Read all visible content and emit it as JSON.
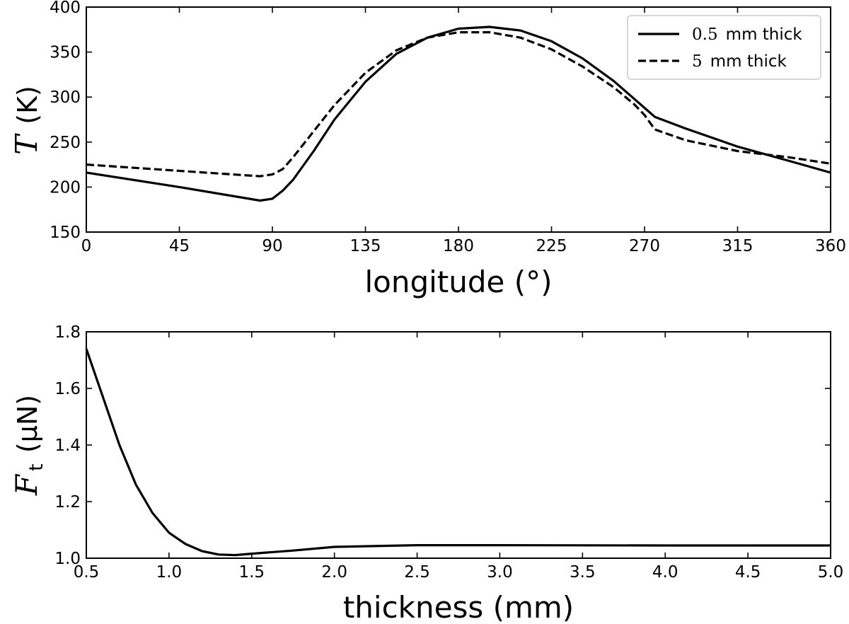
{
  "chart_data": [
    {
      "type": "line",
      "xlabel": "longitude (°)",
      "ylabel": "T (K)",
      "ylabel_symbol": "T",
      "ylabel_unit": "(K)",
      "xlim": [
        0,
        360
      ],
      "ylim": [
        150,
        400
      ],
      "xticks": [
        0,
        45,
        90,
        135,
        180,
        225,
        270,
        315,
        360
      ],
      "yticks": [
        150,
        200,
        250,
        300,
        350,
        400
      ],
      "legend": "top-right",
      "series": [
        {
          "name": "0.5 mm thick",
          "legend_value": "0.5",
          "legend_suffix": "mm thick",
          "style": "solid",
          "x": [
            0,
            45,
            84,
            90,
            95,
            100,
            110,
            120,
            135,
            150,
            165,
            180,
            195,
            210,
            225,
            240,
            255,
            265,
            270,
            275,
            290,
            315,
            340,
            360
          ],
          "y": [
            216,
            200,
            185,
            187,
            196,
            208,
            240,
            275,
            317,
            348,
            366,
            376,
            378,
            374,
            362,
            343,
            318,
            298,
            288,
            278,
            265,
            245,
            229,
            216
          ]
        },
        {
          "name": "5 mm thick",
          "legend_value": "5",
          "legend_suffix": "mm thick",
          "style": "dashed",
          "x": [
            0,
            45,
            84,
            90,
            95,
            100,
            110,
            120,
            135,
            150,
            165,
            180,
            195,
            210,
            225,
            240,
            255,
            265,
            270,
            275,
            290,
            315,
            340,
            360
          ],
          "y": [
            225,
            218,
            212,
            214,
            220,
            233,
            262,
            291,
            327,
            352,
            366,
            372,
            372,
            366,
            353,
            334,
            311,
            292,
            280,
            264,
            252,
            240,
            233,
            226
          ]
        }
      ]
    },
    {
      "type": "line",
      "xlabel": "thickness (mm)",
      "ylabel": "F_t (μN)",
      "ylabel_symbol": "F",
      "ylabel_subscript": "t",
      "ylabel_unit": "(μN)",
      "xlim": [
        0.5,
        5.0
      ],
      "ylim": [
        1.0,
        1.8
      ],
      "xticks": [
        0.5,
        1.0,
        1.5,
        2.0,
        2.5,
        3.0,
        3.5,
        4.0,
        4.5,
        5.0
      ],
      "xtick_labels": [
        "0.5",
        "1.0",
        "1.5",
        "2.0",
        "2.5",
        "3.0",
        "3.5",
        "4.0",
        "4.5",
        "5.0"
      ],
      "yticks": [
        1.0,
        1.2,
        1.4,
        1.6,
        1.8
      ],
      "ytick_labels": [
        "1.0",
        "1.2",
        "1.4",
        "1.6",
        "1.8"
      ],
      "series": [
        {
          "name": "F_t",
          "style": "solid",
          "x": [
            0.5,
            0.6,
            0.7,
            0.8,
            0.9,
            1.0,
            1.1,
            1.2,
            1.3,
            1.4,
            1.5,
            1.75,
            2.0,
            2.5,
            3.0,
            4.0,
            5.0
          ],
          "y": [
            1.74,
            1.57,
            1.4,
            1.26,
            1.16,
            1.09,
            1.05,
            1.025,
            1.013,
            1.011,
            1.016,
            1.027,
            1.04,
            1.046,
            1.046,
            1.045,
            1.045
          ]
        }
      ]
    }
  ]
}
